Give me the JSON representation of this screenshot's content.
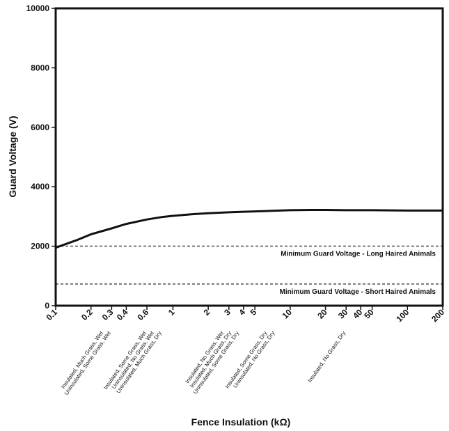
{
  "chart_data": {
    "type": "line",
    "xlabel": "Fence Insulation (kΩ)",
    "ylabel": "Guard Voltage (V)",
    "xscale": "log",
    "xlim": [
      0.1,
      200
    ],
    "ylim": [
      0,
      10000
    ],
    "grid": false,
    "xticks": [
      0.1,
      0.2,
      0.3,
      0.4,
      0.6,
      1,
      2,
      3,
      4,
      5,
      10,
      20,
      30,
      40,
      50,
      100,
      200
    ],
    "xtick_labels": [
      "0.1",
      "0.2",
      "0.3",
      "0.4",
      "0.6",
      "1",
      "2",
      "3",
      "4",
      "5",
      "10",
      "20",
      "30",
      "40",
      "50",
      "100",
      "200"
    ],
    "yticks": [
      0,
      2000,
      4000,
      6000,
      8000,
      10000
    ],
    "ytick_labels": [
      "0",
      "2000",
      "4000",
      "6000",
      "8000",
      "10000"
    ],
    "series": [
      {
        "x": [
          0.1,
          0.15,
          0.2,
          0.3,
          0.4,
          0.6,
          0.8,
          1,
          1.5,
          2,
          3,
          4,
          5,
          7,
          10,
          15,
          20,
          30,
          50,
          100,
          200
        ],
        "y": [
          1950,
          2200,
          2400,
          2600,
          2750,
          2900,
          2980,
          3020,
          3080,
          3110,
          3140,
          3160,
          3170,
          3190,
          3210,
          3220,
          3220,
          3210,
          3210,
          3200,
          3200
        ],
        "color": "#111111"
      }
    ],
    "reference_lines": [
      {
        "y": 2000,
        "label": "Minimum Guard Voltage - Long Haired Animals",
        "color": "#777777"
      },
      {
        "y": 730,
        "label": "Minimum Guard Voltage - Short Haired Animals",
        "color": "#777777"
      }
    ],
    "annotations": [
      {
        "x": 0.3,
        "lines": [
          "Insulated, Much Grass, Wet",
          "Uninsulated, Some Grass, Wet"
        ]
      },
      {
        "x": 0.7,
        "lines": [
          "Insulated, Some Grass, Wet",
          "Uninsulated, No Grass, Wet",
          "Uninsulated, Much Grass, Dry"
        ]
      },
      {
        "x": 3.2,
        "lines": [
          "Insulated, No Grass, Wet",
          "Insulated, Much Grass, Dry",
          "Uninsulated, Some Grass, Dry"
        ]
      },
      {
        "x": 7.5,
        "lines": [
          "Insulated, Some Grass, Dry",
          "Uninsulated, No Grass, Dry"
        ]
      },
      {
        "x": 35,
        "lines": [
          "Insulated, No Grass, Dry"
        ]
      }
    ]
  }
}
